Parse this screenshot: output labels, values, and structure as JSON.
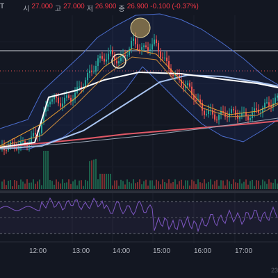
{
  "ohlc": {
    "symbol": "T",
    "open_label": "시",
    "open": "27.000",
    "high_label": "고",
    "high": "27.000",
    "low_label": "저",
    "low": "26.900",
    "close_label": "종",
    "close": "26.900",
    "change": "-0.100 (-0.37%)"
  },
  "time_axis": [
    "12:00",
    "13:00",
    "14:00",
    "15:00",
    "16:00",
    "17:00"
  ],
  "corner_text": "23",
  "colors": {
    "bg": "#131722",
    "up": "#26a69a",
    "down": "#ef5350",
    "rsi": "#7e57c2"
  }
}
